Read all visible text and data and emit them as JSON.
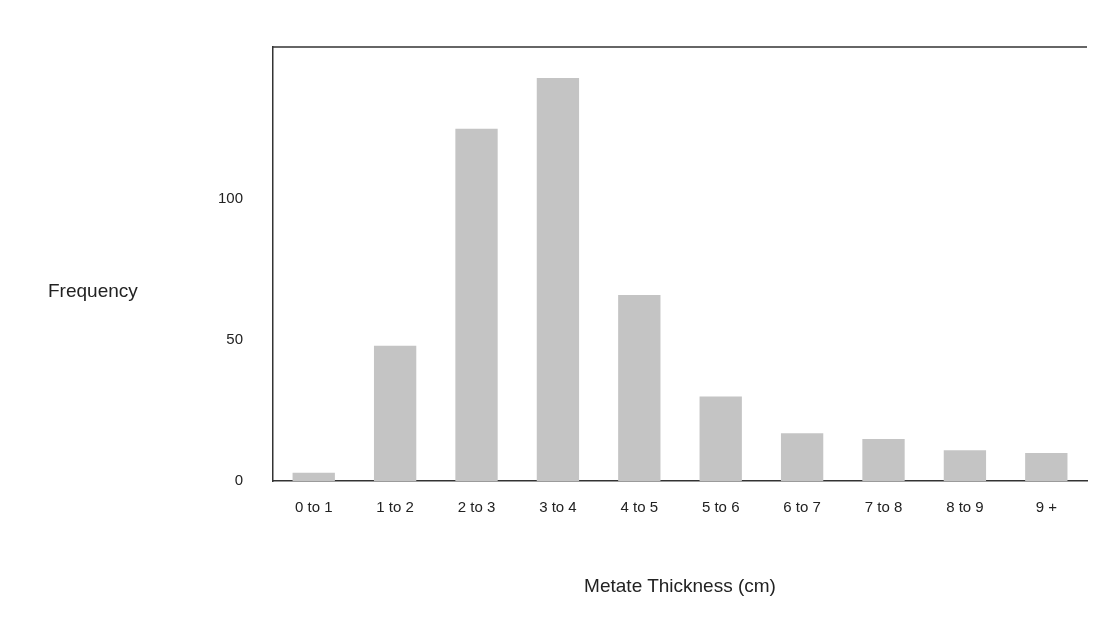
{
  "chart_data": {
    "type": "bar",
    "xlabel": "Metate Thickness (cm)",
    "ylabel": "Frequency",
    "categories": [
      "0 to 1",
      "1 to 2",
      "2 to 3",
      "3 to 4",
      "4 to 5",
      "5 to 6",
      "6 to 7",
      "7 to 8",
      "8 to 9",
      "9 +"
    ],
    "values": [
      3,
      48,
      125,
      143,
      66,
      30,
      17,
      15,
      11,
      10
    ],
    "color": "#c4c4c4",
    "ylim": [
      0,
      154
    ],
    "yticks": [
      0,
      50,
      100
    ],
    "grid": false,
    "legend": false
  }
}
